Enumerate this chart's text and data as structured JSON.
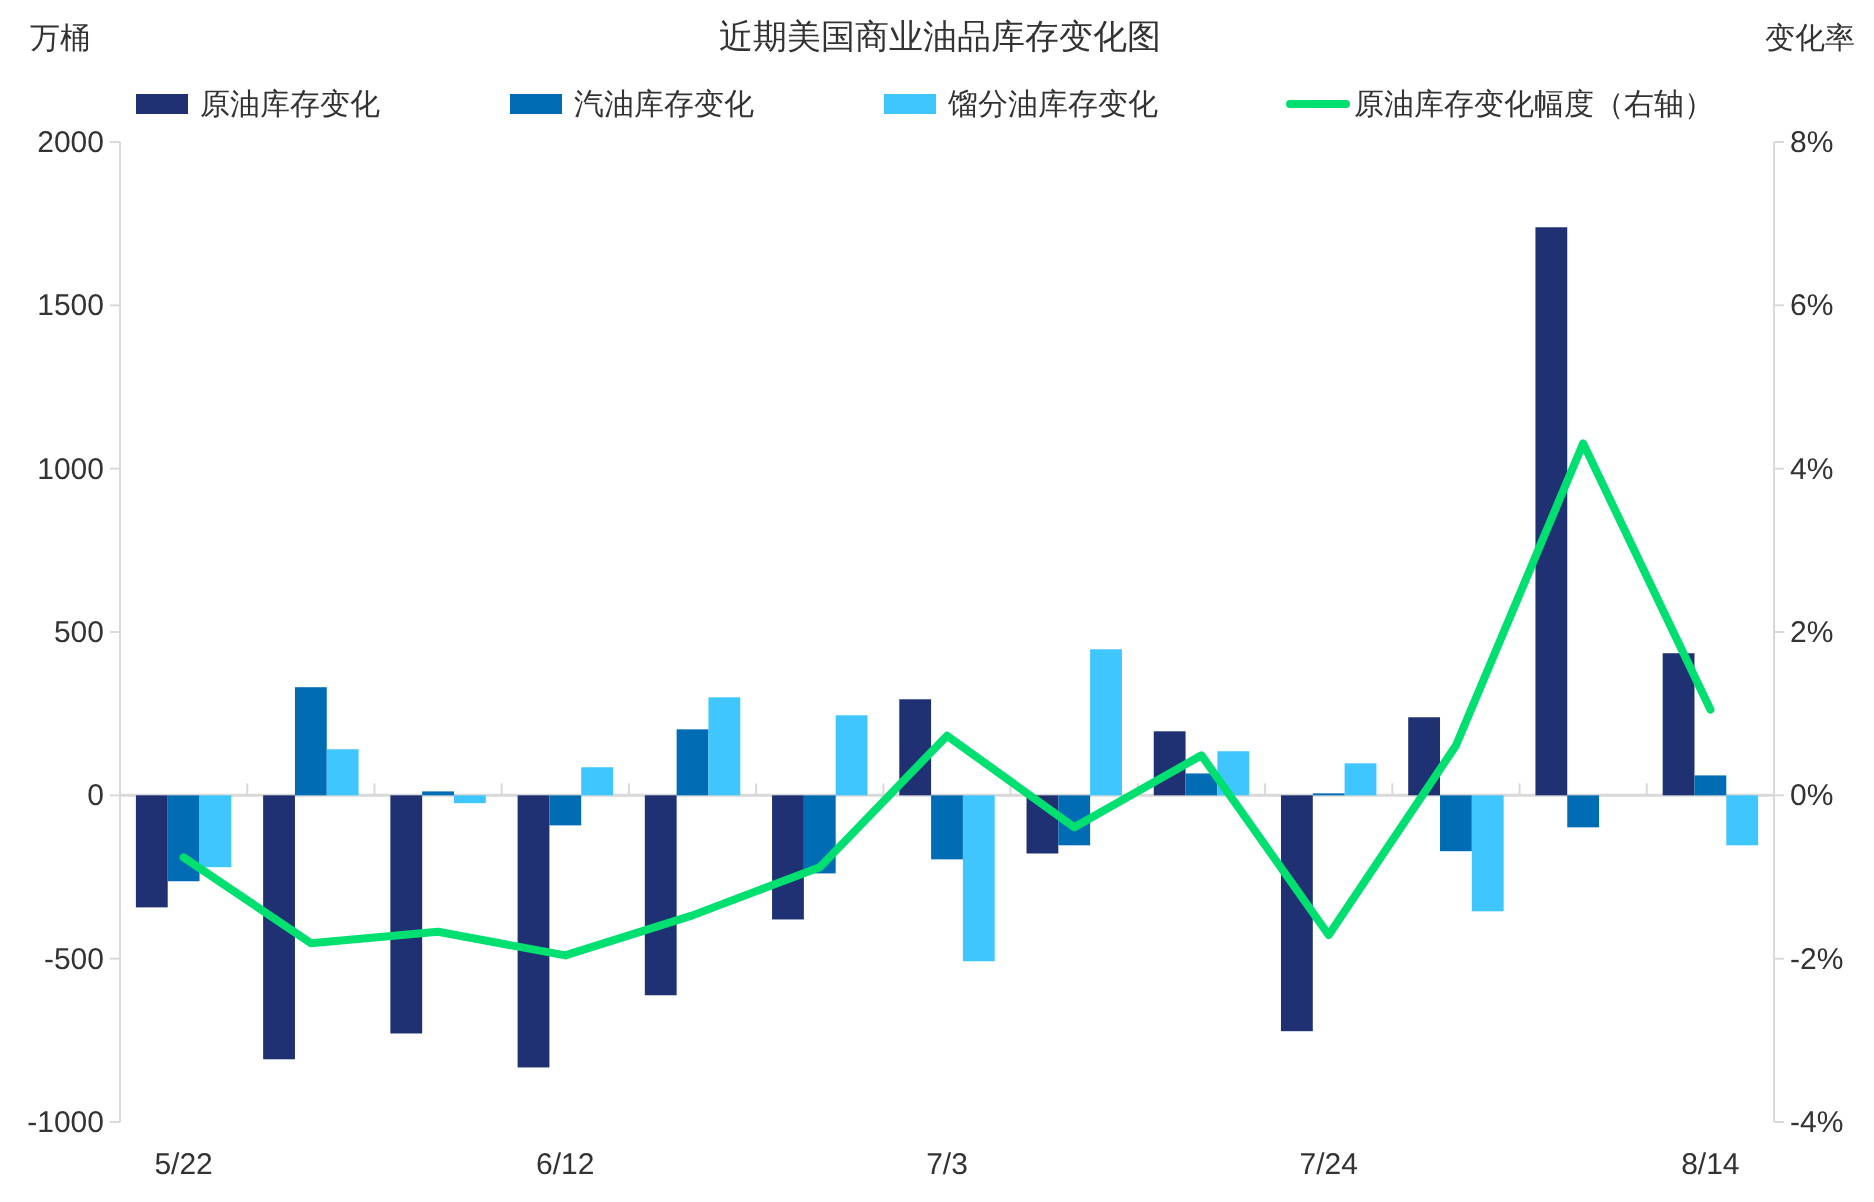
{
  "chart_data": {
    "type": "bar",
    "title": "近期美国商业油品库存变化图",
    "ylabel": "万桶",
    "y2label": "变化率",
    "categories": [
      "5/22",
      null,
      null,
      "6/12",
      null,
      null,
      "7/3",
      null,
      null,
      "7/24",
      null,
      null,
      "8/14"
    ],
    "series": [
      {
        "name": "原油库存变化",
        "color": "#1f3172",
        "values": [
          -343,
          -808,
          -729,
          -833,
          -612,
          -380,
          294,
          -178,
          196,
          -722,
          239,
          1739,
          435
        ]
      },
      {
        "name": "汽油库存变化",
        "color": "#006cb4",
        "values": [
          -263,
          331,
          12,
          -92,
          202,
          -239,
          -196,
          -153,
          67,
          6,
          -171,
          -98,
          61
        ]
      },
      {
        "name": "馏分油库存变化",
        "color": "#3fc6ff",
        "values": [
          -220,
          141,
          -24,
          86,
          300,
          245,
          -508,
          447,
          135,
          98,
          -355,
          0,
          -153
        ]
      },
      {
        "name": "原油库存变化幅度（右轴）",
        "type": "line",
        "axis": "y2",
        "color": "#00e070",
        "values": [
          -0.76,
          -1.81,
          -1.67,
          -1.96,
          -1.47,
          -0.88,
          0.73,
          -0.39,
          0.49,
          -1.71,
          0.61,
          4.31,
          1.05
        ]
      }
    ],
    "ylim": [
      -1000,
      2000
    ],
    "yticks": [
      -1000,
      -500,
      0,
      500,
      1000,
      1500,
      2000
    ],
    "y2lim": [
      -4,
      8
    ],
    "y2ticks": [
      {
        "value": -4,
        "label": "-4%"
      },
      {
        "value": -2,
        "label": "-2%"
      },
      {
        "value": 0,
        "label": "0%"
      },
      {
        "value": 2,
        "label": "2%"
      },
      {
        "value": 4,
        "label": "4%"
      },
      {
        "value": 6,
        "label": "6%"
      },
      {
        "value": 8,
        "label": "8%"
      }
    ],
    "legend": "top",
    "marker": "none",
    "line_style": "solid"
  }
}
